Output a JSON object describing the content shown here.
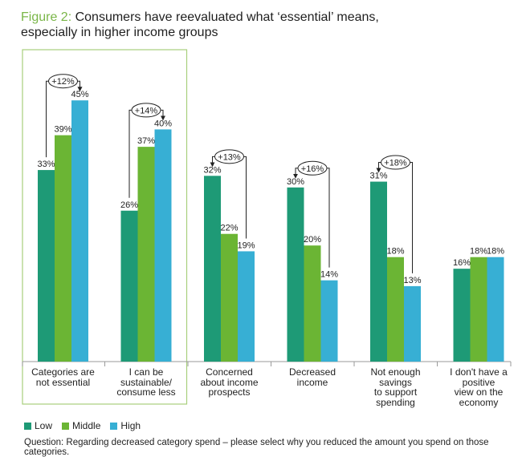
{
  "figure": {
    "label": "Figure 2:",
    "title_line1": "Consumers have reevaluated what ‘essential’ means,",
    "title_line2": "especially in higher income groups"
  },
  "colors": {
    "low": "#1e9a76",
    "middle": "#6bb534",
    "high": "#37afd4",
    "highlight_box": "#a8cf7c",
    "axis": "#9a9a9a"
  },
  "chart_data": {
    "type": "bar",
    "categories": [
      "Categories are not essential",
      "I can be sustainable/ consume less",
      "Concerned about income prospects",
      "Decreased income",
      "Not enough savings to support spending",
      "I don't have a positive view on the economy"
    ],
    "category_label_lines": [
      [
        "Categories are",
        "not essential"
      ],
      [
        "I can be",
        "sustainable/",
        "consume less"
      ],
      [
        "Concerned",
        "about income",
        "prospects"
      ],
      [
        "Decreased",
        "income"
      ],
      [
        "Not enough",
        "savings",
        "to support",
        "spending"
      ],
      [
        "I don't have a",
        "positive",
        "view on the",
        "economy"
      ]
    ],
    "series": [
      {
        "name": "Low",
        "values": [
          33,
          26,
          32,
          30,
          31,
          16
        ]
      },
      {
        "name": "Middle",
        "values": [
          39,
          37,
          22,
          20,
          18,
          18
        ]
      },
      {
        "name": "High",
        "values": [
          45,
          40,
          19,
          14,
          13,
          18
        ]
      }
    ],
    "data_labels": [
      [
        "33%",
        "39%",
        "45%"
      ],
      [
        "26%",
        "37%",
        "40%"
      ],
      [
        "32%",
        "22%",
        "19%"
      ],
      [
        "30%",
        "20%",
        "14%"
      ],
      [
        "31%",
        "18%",
        "13%"
      ],
      [
        "16%",
        "18%",
        "18%"
      ]
    ],
    "annotations": [
      {
        "category": 0,
        "label": "+12%",
        "direction": "up"
      },
      {
        "category": 1,
        "label": "+14%",
        "direction": "up"
      },
      {
        "category": 2,
        "label": "+13%",
        "direction": "down"
      },
      {
        "category": 3,
        "label": "+16%",
        "direction": "down"
      },
      {
        "category": 4,
        "label": "+18%",
        "direction": "down"
      }
    ],
    "highlighted_categories": [
      0,
      1
    ],
    "ylim": [
      0,
      50
    ],
    "grid": false,
    "legend_position": "bottom-left"
  },
  "legend": [
    {
      "label": "Low",
      "color": "#1e9a76"
    },
    {
      "label": "Middle",
      "color": "#6bb534"
    },
    {
      "label": "High",
      "color": "#37afd4"
    }
  ],
  "footnote": "Question: Regarding decreased category spend – please select why you reduced the amount you spend on those categories."
}
